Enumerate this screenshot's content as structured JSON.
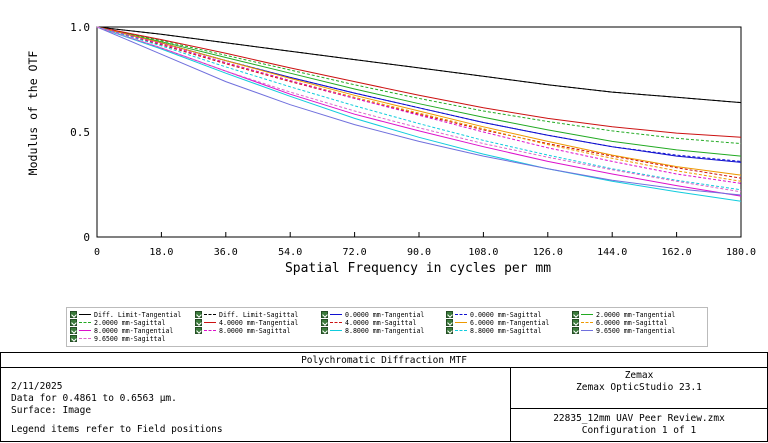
{
  "chart_data": {
    "type": "line",
    "title": "Polychromatic Diffraction MTF",
    "xlabel": "Spatial Frequency in cycles per mm",
    "ylabel": "Modulus of the OTF",
    "xlim": [
      0,
      180
    ],
    "ylim": [
      0,
      1
    ],
    "x_ticks": [
      "0",
      "18.0",
      "36.0",
      "54.0",
      "72.0",
      "90.0",
      "108.0",
      "126.0",
      "144.0",
      "162.0",
      "180.0"
    ],
    "y_ticks": [
      "0",
      "0.5",
      "1.0"
    ],
    "x": [
      0,
      18,
      36,
      54,
      72,
      90,
      108,
      126,
      144,
      162,
      180
    ],
    "series": [
      {
        "name": "Diff. Limit-Tangential",
        "color": "#000000",
        "dash": false,
        "values": [
          1.0,
          0.965,
          0.925,
          0.885,
          0.845,
          0.805,
          0.765,
          0.725,
          0.69,
          0.665,
          0.64
        ]
      },
      {
        "name": "Diff. Limit-Sagittal",
        "color": "#000000",
        "dash": true,
        "values": [
          1.0,
          0.965,
          0.925,
          0.885,
          0.845,
          0.805,
          0.765,
          0.725,
          0.69,
          0.665,
          0.64
        ]
      },
      {
        "name": "0.0000 mm-Tangential",
        "color": "#1010d0",
        "dash": false,
        "values": [
          1.0,
          0.925,
          0.84,
          0.76,
          0.685,
          0.615,
          0.545,
          0.485,
          0.43,
          0.385,
          0.355
        ]
      },
      {
        "name": "0.0000 mm-Sagittal",
        "color": "#1010d0",
        "dash": true,
        "values": [
          1.0,
          0.925,
          0.84,
          0.76,
          0.685,
          0.615,
          0.545,
          0.485,
          0.43,
          0.39,
          0.36
        ]
      },
      {
        "name": "2.0000 mm-Tangential",
        "color": "#22aa22",
        "dash": false,
        "values": [
          1.0,
          0.93,
          0.855,
          0.78,
          0.705,
          0.635,
          0.57,
          0.51,
          0.455,
          0.415,
          0.385
        ]
      },
      {
        "name": "2.0000 mm-Sagittal",
        "color": "#22aa22",
        "dash": true,
        "values": [
          1.0,
          0.935,
          0.865,
          0.795,
          0.725,
          0.66,
          0.6,
          0.55,
          0.505,
          0.47,
          0.445
        ]
      },
      {
        "name": "4.0000 mm-Tangential",
        "color": "#cc1111",
        "dash": false,
        "values": [
          1.0,
          0.94,
          0.875,
          0.805,
          0.74,
          0.675,
          0.615,
          0.565,
          0.525,
          0.495,
          0.475
        ]
      },
      {
        "name": "4.0000 mm-Sagittal",
        "color": "#cc1111",
        "dash": true,
        "values": [
          1.0,
          0.915,
          0.825,
          0.74,
          0.66,
          0.585,
          0.51,
          0.445,
          0.385,
          0.33,
          0.28
        ]
      },
      {
        "name": "6.0000 mm-Tangential",
        "color": "#ee9900",
        "dash": false,
        "values": [
          1.0,
          0.925,
          0.84,
          0.755,
          0.675,
          0.6,
          0.525,
          0.455,
          0.39,
          0.335,
          0.295
        ]
      },
      {
        "name": "6.0000 mm-Sagittal",
        "color": "#ee9900",
        "dash": true,
        "values": [
          1.0,
          0.92,
          0.83,
          0.745,
          0.665,
          0.59,
          0.515,
          0.44,
          0.375,
          0.315,
          0.265
        ]
      },
      {
        "name": "8.0000 mm-Tangential",
        "color": "#dd10cc",
        "dash": false,
        "values": [
          1.0,
          0.9,
          0.79,
          0.68,
          0.585,
          0.505,
          0.43,
          0.36,
          0.3,
          0.245,
          0.195
        ]
      },
      {
        "name": "8.0000 mm-Sagittal",
        "color": "#dd10cc",
        "dash": true,
        "values": [
          1.0,
          0.92,
          0.83,
          0.745,
          0.66,
          0.58,
          0.5,
          0.425,
          0.36,
          0.3,
          0.255
        ]
      },
      {
        "name": "8.8000 mm-Tangential",
        "color": "#11ccdd",
        "dash": false,
        "values": [
          1.0,
          0.895,
          0.78,
          0.67,
          0.565,
          0.475,
          0.395,
          0.325,
          0.265,
          0.215,
          0.17
        ]
      },
      {
        "name": "8.8000 mm-Sagittal",
        "color": "#11ccdd",
        "dash": true,
        "values": [
          1.0,
          0.91,
          0.81,
          0.715,
          0.625,
          0.54,
          0.46,
          0.39,
          0.325,
          0.27,
          0.225
        ]
      },
      {
        "name": "9.6500 mm-Tangential",
        "color": "#7070dd",
        "dash": false,
        "values": [
          1.0,
          0.87,
          0.74,
          0.63,
          0.535,
          0.455,
          0.385,
          0.325,
          0.27,
          0.23,
          0.2
        ]
      },
      {
        "name": "9.6500 mm-Sagittal",
        "color": "#dd66cc",
        "dash": true,
        "values": [
          1.0,
          0.9,
          0.79,
          0.69,
          0.6,
          0.52,
          0.445,
          0.38,
          0.32,
          0.265,
          0.215
        ]
      }
    ]
  },
  "info": {
    "title": "Polychromatic Diffraction MTF",
    "date": "2/11/2025",
    "data_line": "Data for 0.4861 to 0.6563 µm.",
    "surface": "Surface: Image",
    "legend_note": "Legend items refer to Field positions",
    "company": "Zemax",
    "product": "Zemax OpticStudio 23.1",
    "file": "22835_12mm UAV Peer Review.zmx",
    "config": "Configuration 1 of 1"
  }
}
